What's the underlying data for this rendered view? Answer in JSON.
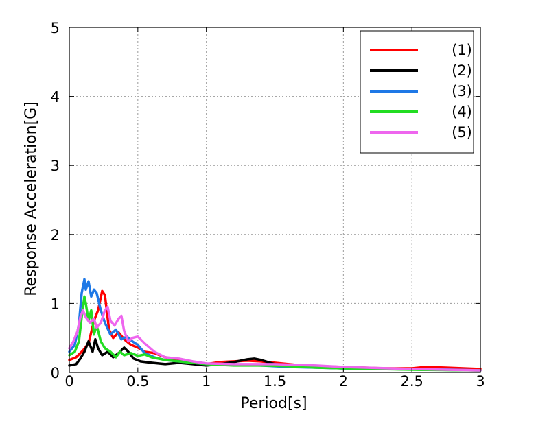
{
  "chart_data": {
    "type": "line",
    "title": "",
    "xlabel": "Period[s]",
    "ylabel": "Response Acceleration[G]",
    "xlim": [
      0,
      3
    ],
    "ylim": [
      0,
      5
    ],
    "x_ticks": [
      0,
      0.5,
      1,
      1.5,
      2,
      2.5,
      3
    ],
    "x_tick_labels": [
      "0",
      "0.5",
      "1",
      "1.5",
      "2",
      "2.5",
      "3"
    ],
    "y_ticks": [
      0,
      1,
      2,
      3,
      4,
      5
    ],
    "y_tick_labels": [
      "0",
      "1",
      "2",
      "3",
      "4",
      "5"
    ],
    "grid": true,
    "legend_position": "top-right",
    "series": [
      {
        "name": "(1)",
        "color": "#ff0000",
        "x": [
          0,
          0.05,
          0.1,
          0.14,
          0.18,
          0.21,
          0.24,
          0.26,
          0.29,
          0.32,
          0.36,
          0.4,
          0.45,
          0.5,
          0.55,
          0.62,
          0.7,
          0.8,
          0.9,
          1.0,
          1.1,
          1.2,
          1.3,
          1.4,
          1.5,
          1.7,
          2.0,
          2.3,
          2.5,
          2.6,
          2.75,
          3.0
        ],
        "y": [
          0.18,
          0.22,
          0.32,
          0.42,
          0.75,
          0.9,
          1.18,
          1.12,
          0.62,
          0.5,
          0.58,
          0.48,
          0.4,
          0.36,
          0.3,
          0.28,
          0.22,
          0.18,
          0.14,
          0.12,
          0.15,
          0.16,
          0.17,
          0.16,
          0.14,
          0.1,
          0.08,
          0.06,
          0.06,
          0.08,
          0.07,
          0.05
        ]
      },
      {
        "name": "(2)",
        "color": "#000000",
        "x": [
          0,
          0.05,
          0.08,
          0.11,
          0.14,
          0.17,
          0.19,
          0.21,
          0.24,
          0.28,
          0.32,
          0.36,
          0.4,
          0.43,
          0.47,
          0.52,
          0.6,
          0.7,
          0.8,
          0.9,
          1.0,
          1.1,
          1.2,
          1.3,
          1.35,
          1.4,
          1.5,
          1.7,
          2.0,
          2.3,
          2.6,
          3.0
        ],
        "y": [
          0.1,
          0.12,
          0.2,
          0.3,
          0.45,
          0.3,
          0.48,
          0.35,
          0.25,
          0.3,
          0.22,
          0.28,
          0.36,
          0.3,
          0.2,
          0.16,
          0.14,
          0.12,
          0.14,
          0.12,
          0.1,
          0.12,
          0.15,
          0.19,
          0.2,
          0.18,
          0.12,
          0.08,
          0.06,
          0.05,
          0.04,
          0.03
        ]
      },
      {
        "name": "(3)",
        "color": "#1e78e6",
        "x": [
          0,
          0.04,
          0.07,
          0.09,
          0.11,
          0.12,
          0.14,
          0.16,
          0.18,
          0.2,
          0.23,
          0.26,
          0.3,
          0.34,
          0.38,
          0.42,
          0.46,
          0.5,
          0.55,
          0.62,
          0.7,
          0.8,
          0.9,
          1.0,
          1.2,
          1.4,
          1.6,
          1.8,
          2.0,
          2.4,
          2.8,
          3.0
        ],
        "y": [
          0.3,
          0.4,
          0.7,
          1.15,
          1.35,
          1.2,
          1.32,
          1.1,
          1.2,
          1.15,
          0.9,
          0.72,
          0.55,
          0.62,
          0.48,
          0.52,
          0.45,
          0.4,
          0.28,
          0.22,
          0.18,
          0.16,
          0.14,
          0.12,
          0.11,
          0.1,
          0.08,
          0.07,
          0.06,
          0.05,
          0.04,
          0.03
        ]
      },
      {
        "name": "(4)",
        "color": "#22dd22",
        "x": [
          0,
          0.04,
          0.07,
          0.09,
          0.11,
          0.12,
          0.14,
          0.16,
          0.18,
          0.2,
          0.23,
          0.26,
          0.3,
          0.34,
          0.37,
          0.4,
          0.45,
          0.5,
          0.55,
          0.6,
          0.65,
          0.7,
          0.8,
          0.9,
          1.0,
          1.2,
          1.4,
          1.6,
          1.8,
          2.0,
          2.5,
          3.0
        ],
        "y": [
          0.25,
          0.3,
          0.45,
          0.8,
          1.1,
          1.0,
          0.75,
          0.9,
          0.55,
          0.68,
          0.45,
          0.35,
          0.3,
          0.22,
          0.3,
          0.25,
          0.28,
          0.24,
          0.26,
          0.22,
          0.2,
          0.18,
          0.16,
          0.14,
          0.12,
          0.1,
          0.1,
          0.09,
          0.07,
          0.06,
          0.04,
          0.03
        ]
      },
      {
        "name": "(5)",
        "color": "#ee66ee",
        "x": [
          0,
          0.03,
          0.06,
          0.08,
          0.1,
          0.12,
          0.15,
          0.18,
          0.2,
          0.23,
          0.26,
          0.28,
          0.3,
          0.33,
          0.36,
          0.38,
          0.4,
          0.43,
          0.46,
          0.5,
          0.55,
          0.62,
          0.7,
          0.8,
          0.9,
          1.0,
          1.2,
          1.5,
          1.8,
          2.0,
          2.5,
          3.0
        ],
        "y": [
          0.35,
          0.45,
          0.6,
          0.8,
          0.9,
          0.8,
          0.72,
          0.78,
          0.65,
          0.72,
          0.9,
          0.95,
          0.75,
          0.68,
          0.78,
          0.82,
          0.6,
          0.45,
          0.5,
          0.52,
          0.42,
          0.3,
          0.22,
          0.2,
          0.16,
          0.13,
          0.12,
          0.12,
          0.1,
          0.08,
          0.05,
          0.03
        ]
      }
    ]
  }
}
